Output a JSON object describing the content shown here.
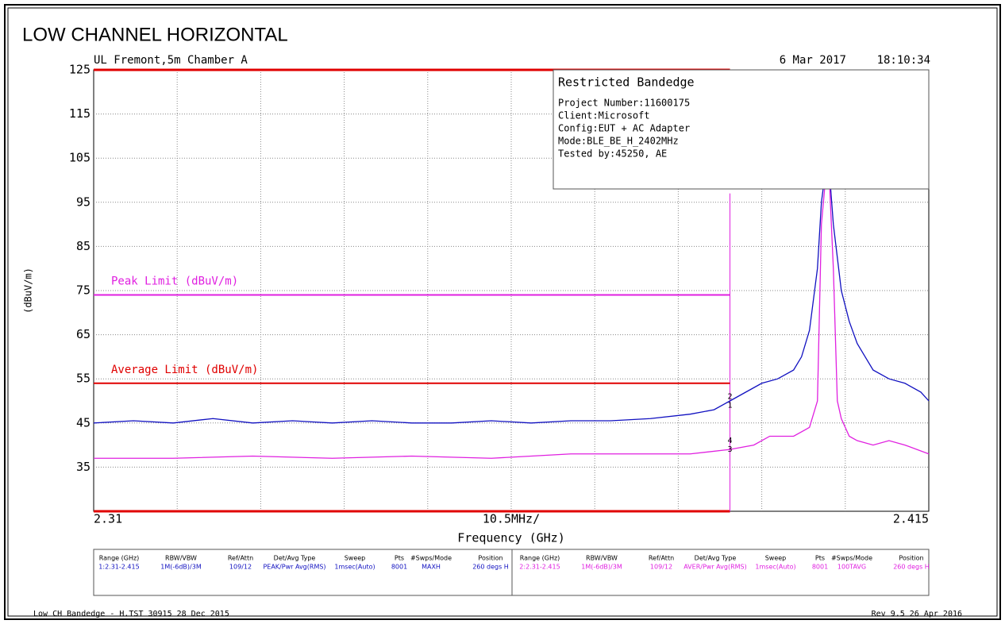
{
  "chart_data": {
    "type": "line",
    "title": "LOW CHANNEL HORIZONTAL",
    "site": "UL Fremont,5m Chamber A",
    "date": "6 Mar 2017",
    "time": "18:10:34",
    "ylabel": "(dBuV/m)",
    "xlabel": "Frequency (GHz)",
    "x_scale_label": "10.5MHz/",
    "xlim": [
      2.31,
      2.415
    ],
    "xticks": [
      2.31,
      2.415
    ],
    "xdivisions": 10,
    "ylim": [
      25,
      125
    ],
    "yticks": [
      125,
      115,
      105,
      95,
      85,
      75,
      65,
      55,
      45,
      35
    ],
    "grid": true,
    "series": [
      {
        "name": "1",
        "color": "#1010c0",
        "x": [
          2.31,
          2.315,
          2.32,
          2.325,
          2.33,
          2.335,
          2.34,
          2.345,
          2.35,
          2.355,
          2.36,
          2.365,
          2.37,
          2.375,
          2.38,
          2.385,
          2.388,
          2.39,
          2.392,
          2.394,
          2.396,
          2.398,
          2.399,
          2.4,
          2.401,
          2.4015,
          2.402,
          2.4025,
          2.403,
          2.404,
          2.405,
          2.406,
          2.407,
          2.408,
          2.41,
          2.412,
          2.414,
          2.415
        ],
        "values": [
          45,
          45.5,
          45,
          46,
          45,
          45.5,
          45,
          45.5,
          45,
          45,
          45.5,
          45,
          45.5,
          45.5,
          46,
          47,
          48,
          50,
          52,
          54,
          55,
          57,
          60,
          66,
          80,
          95,
          102,
          102,
          90,
          75,
          68,
          63,
          60,
          57,
          55,
          54,
          52,
          50
        ]
      },
      {
        "name": "2",
        "color": "#e020e0",
        "x": [
          2.31,
          2.32,
          2.33,
          2.34,
          2.35,
          2.36,
          2.37,
          2.38,
          2.385,
          2.39,
          2.393,
          2.395,
          2.398,
          2.4,
          2.401,
          2.4015,
          2.402,
          2.4025,
          2.403,
          2.4035,
          2.404,
          2.405,
          2.406,
          2.408,
          2.41,
          2.412,
          2.415
        ],
        "values": [
          37,
          37,
          37.5,
          37,
          37.5,
          37,
          38,
          38,
          38,
          39,
          40,
          42,
          42,
          44,
          50,
          90,
          100,
          100,
          80,
          50,
          46,
          42,
          41,
          40,
          41,
          40,
          38
        ]
      }
    ],
    "limits": [
      {
        "name": "Peak Limit (dBuV/m)",
        "color": "#e020e0",
        "value": 74,
        "x": [
          2.31,
          2.39
        ]
      },
      {
        "name": "Average Limit (dBuV/m)",
        "color": "#e00000",
        "value": 54,
        "x": [
          2.31,
          2.39
        ]
      }
    ],
    "display_lines": [
      {
        "color": "#e00000",
        "value": 125,
        "x": [
          2.31,
          2.39
        ]
      },
      {
        "color": "#e00000",
        "value": 25,
        "x": [
          2.31,
          2.39
        ]
      }
    ],
    "marker_line": {
      "color": "#e020e0",
      "x": 2.39,
      "y": [
        25,
        97
      ]
    },
    "markers": [
      {
        "label": "1",
        "x": 2.39,
        "y": 49
      },
      {
        "label": "2",
        "x": 2.39,
        "y": 51
      },
      {
        "label": "3",
        "x": 2.39,
        "y": 39
      },
      {
        "label": "4",
        "x": 2.39,
        "y": 41
      }
    ]
  },
  "info_box": {
    "title": "Restricted Bandedge",
    "lines": [
      "Project Number:11600175",
      "Client:Microsoft",
      "Config:EUT + AC Adapter",
      "Mode:BLE_BE_H_2402MHz",
      "Tested by:45250, AE"
    ]
  },
  "trace_table": {
    "headers": [
      "Range (GHz)",
      "RBW/VBW",
      "Ref/Attn",
      "Det/Avg Type",
      "Sweep",
      "Pts",
      "#Swps/Mode",
      "Position"
    ],
    "rows": [
      [
        "1:2.31-2.415",
        "1M(-6dB)/3M",
        "109/12",
        "PEAK/Pwr Avg(RMS)",
        "1msec(Auto)",
        "8001",
        "MAXH",
        "260 degs H"
      ],
      [
        "2:2.31-2.415",
        "1M(-6dB)/3M",
        "109/12",
        "AVER/Pwr Avg(RMS)",
        "1msec(Auto)",
        "8001",
        "100TAVG",
        "260 degs H"
      ]
    ]
  },
  "footer": {
    "left": "Low CH Bandedge - H.TST 30915 28 Dec 2015",
    "right": "Rev 9.5 26 Apr 2016"
  }
}
